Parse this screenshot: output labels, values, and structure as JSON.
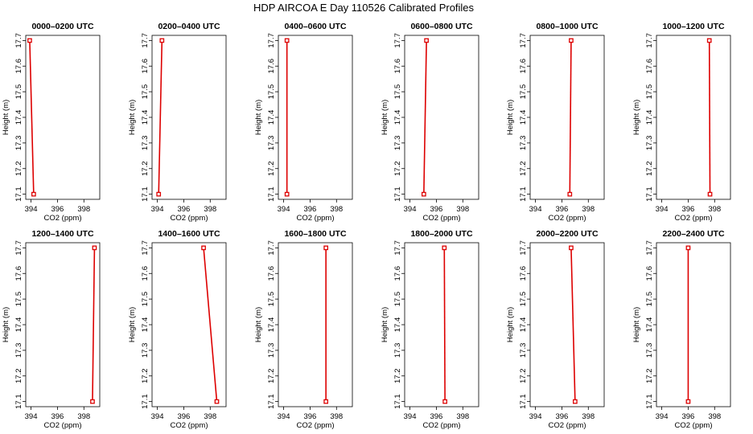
{
  "title": "HDP AIRCOA E  Day 110526  Calibrated Profiles",
  "axes": {
    "xlabel": "CO2 (ppm)",
    "ylabel": "Height (m)",
    "xlim": [
      393.6,
      399.2
    ],
    "ylim": [
      17.08,
      17.72
    ],
    "xticks": [
      394,
      396,
      398
    ],
    "yticks": [
      17.1,
      17.2,
      17.3,
      17.4,
      17.5,
      17.6,
      17.7
    ]
  },
  "colors": {
    "line": "#dd0000"
  },
  "chart_data": [
    {
      "type": "line",
      "title": "0000–0200 UTC",
      "x": [
        394.2,
        393.9
      ],
      "y": [
        17.1,
        17.7
      ]
    },
    {
      "type": "line",
      "title": "0200–0400 UTC",
      "x": [
        394.1,
        394.35
      ],
      "y": [
        17.1,
        17.7
      ]
    },
    {
      "type": "line",
      "title": "0400–0600 UTC",
      "x": [
        394.25,
        394.25
      ],
      "y": [
        17.1,
        17.7
      ]
    },
    {
      "type": "line",
      "title": "0600–0800 UTC",
      "x": [
        395.05,
        395.25
      ],
      "y": [
        17.1,
        17.7
      ]
    },
    {
      "type": "line",
      "title": "0800–1000 UTC",
      "x": [
        396.6,
        396.7
      ],
      "y": [
        17.1,
        17.7
      ]
    },
    {
      "type": "line",
      "title": "1000–1200 UTC",
      "x": [
        397.65,
        397.6
      ],
      "y": [
        17.1,
        17.7
      ]
    },
    {
      "type": "line",
      "title": "1200–1400 UTC",
      "x": [
        398.65,
        398.8
      ],
      "y": [
        17.1,
        17.7
      ]
    },
    {
      "type": "line",
      "title": "1400–1600 UTC",
      "x": [
        398.5,
        397.5
      ],
      "y": [
        17.1,
        17.7
      ]
    },
    {
      "type": "line",
      "title": "1600–1800 UTC",
      "x": [
        397.2,
        397.2
      ],
      "y": [
        17.1,
        17.7
      ]
    },
    {
      "type": "line",
      "title": "1800–2000 UTC",
      "x": [
        396.65,
        396.6
      ],
      "y": [
        17.1,
        17.7
      ]
    },
    {
      "type": "line",
      "title": "2000–2200 UTC",
      "x": [
        397.0,
        396.7
      ],
      "y": [
        17.1,
        17.7
      ]
    },
    {
      "type": "line",
      "title": "2200–2400 UTC",
      "x": [
        396.0,
        396.0
      ],
      "y": [
        17.1,
        17.7
      ]
    }
  ]
}
